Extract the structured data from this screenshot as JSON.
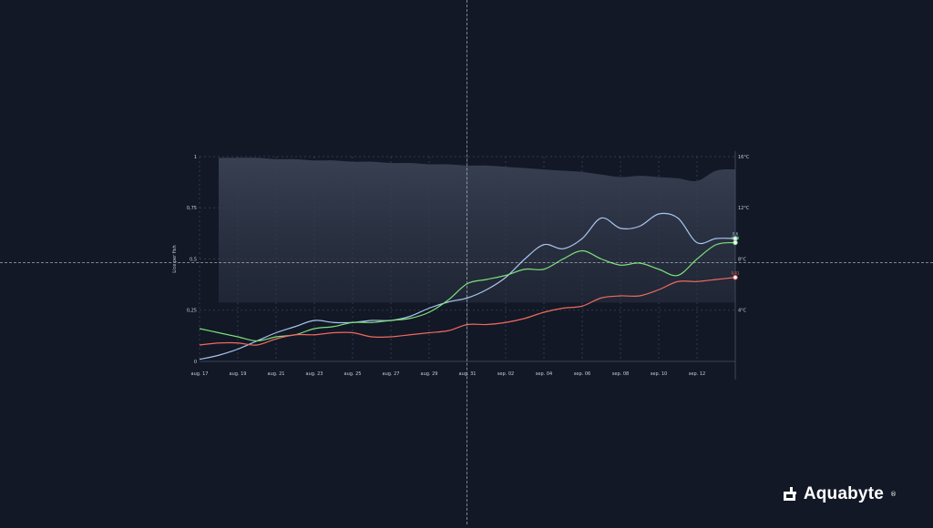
{
  "brand": {
    "name": "Aquabyte",
    "reg": "®"
  },
  "colors": {
    "background": "#121826",
    "band": "#3a4254",
    "grid": "#3b4356",
    "tick_text": "#c9ced8",
    "series_blue": "#a9c4ee",
    "series_green": "#7fe07a",
    "series_red": "#f06a5e"
  },
  "chart_data": {
    "type": "line",
    "ylabel": "Lice per fish",
    "ylim": [
      0,
      1
    ],
    "y_ticks": [
      "0",
      "0,25",
      "0,5",
      "0,75",
      "1"
    ],
    "y_tick_values": [
      0,
      0.25,
      0.5,
      0.75,
      1
    ],
    "y2_ticks": [
      "4°C",
      "8°C",
      "12°C",
      "16°C"
    ],
    "y2_tick_values": [
      4,
      8,
      12,
      16
    ],
    "y2lim": [
      0,
      16
    ],
    "grid": true,
    "x_ticks": [
      "aug. 17",
      "aug. 19",
      "aug. 21",
      "aug. 23",
      "aug. 25",
      "aug. 27",
      "aug. 29",
      "aug. 31",
      "sep. 02",
      "sep. 04",
      "sep. 06",
      "sep. 08",
      "sep. 10",
      "sep. 12"
    ],
    "x_tick_days": [
      0,
      2,
      4,
      6,
      8,
      10,
      12,
      14,
      16,
      18,
      20,
      22,
      24,
      26
    ],
    "x_range_days": [
      0,
      28
    ],
    "temperature_band": {
      "x_days": [
        1,
        2,
        3,
        4,
        5,
        6,
        7,
        8,
        9,
        10,
        11,
        12,
        13,
        14,
        15,
        16,
        17,
        18,
        19,
        20,
        21,
        22,
        23,
        24,
        25,
        26,
        27,
        28
      ],
      "upper": [
        15.9,
        15.9,
        15.9,
        15.8,
        15.8,
        15.7,
        15.7,
        15.6,
        15.6,
        15.5,
        15.5,
        15.4,
        15.4,
        15.3,
        15.3,
        15.2,
        15.1,
        15.0,
        14.9,
        14.8,
        14.6,
        14.4,
        14.5,
        14.4,
        14.3,
        14.1,
        14.9,
        15.0
      ],
      "lower": [
        4.6,
        4.6,
        4.6,
        4.6,
        4.6,
        4.6,
        4.6,
        4.6,
        4.6,
        4.6,
        4.6,
        4.6,
        4.6,
        4.6,
        4.6,
        4.6,
        4.6,
        4.6,
        4.6,
        4.6,
        4.6,
        4.6,
        4.6,
        4.6,
        4.6,
        4.6,
        4.6,
        4.6
      ]
    },
    "series": [
      {
        "key": "blue",
        "x_days": [
          0,
          1,
          2,
          3,
          4,
          5,
          6,
          7,
          8,
          9,
          10,
          11,
          12,
          13,
          14,
          15,
          16,
          17,
          18,
          19,
          20,
          21,
          22,
          23,
          24,
          25,
          26,
          27,
          28
        ],
        "values": [
          0.01,
          0.03,
          0.06,
          0.1,
          0.14,
          0.17,
          0.2,
          0.19,
          0.19,
          0.2,
          0.2,
          0.22,
          0.26,
          0.29,
          0.31,
          0.35,
          0.41,
          0.5,
          0.57,
          0.55,
          0.6,
          0.7,
          0.65,
          0.66,
          0.72,
          0.7,
          0.58,
          0.6,
          0.6
        ],
        "end_label": "0,6"
      },
      {
        "key": "green",
        "x_days": [
          0,
          1,
          2,
          3,
          4,
          5,
          6,
          7,
          8,
          9,
          10,
          11,
          12,
          13,
          14,
          15,
          16,
          17,
          18,
          19,
          20,
          21,
          22,
          23,
          24,
          25,
          26,
          27,
          28
        ],
        "values": [
          0.16,
          0.14,
          0.12,
          0.1,
          0.12,
          0.13,
          0.16,
          0.17,
          0.19,
          0.19,
          0.2,
          0.21,
          0.24,
          0.3,
          0.38,
          0.4,
          0.42,
          0.45,
          0.45,
          0.5,
          0.54,
          0.5,
          0.47,
          0.48,
          0.45,
          0.42,
          0.5,
          0.57,
          0.58
        ],
        "end_label": "0,58"
      },
      {
        "key": "red",
        "x_days": [
          0,
          1,
          2,
          3,
          4,
          5,
          6,
          7,
          8,
          9,
          10,
          11,
          12,
          13,
          14,
          15,
          16,
          17,
          18,
          19,
          20,
          21,
          22,
          23,
          24,
          25,
          26,
          27,
          28
        ],
        "values": [
          0.08,
          0.09,
          0.09,
          0.08,
          0.11,
          0.13,
          0.13,
          0.14,
          0.14,
          0.12,
          0.12,
          0.13,
          0.14,
          0.15,
          0.18,
          0.18,
          0.19,
          0.21,
          0.24,
          0.26,
          0.27,
          0.31,
          0.32,
          0.32,
          0.35,
          0.39,
          0.39,
          0.4,
          0.41
        ],
        "end_label": "0,41"
      }
    ]
  }
}
